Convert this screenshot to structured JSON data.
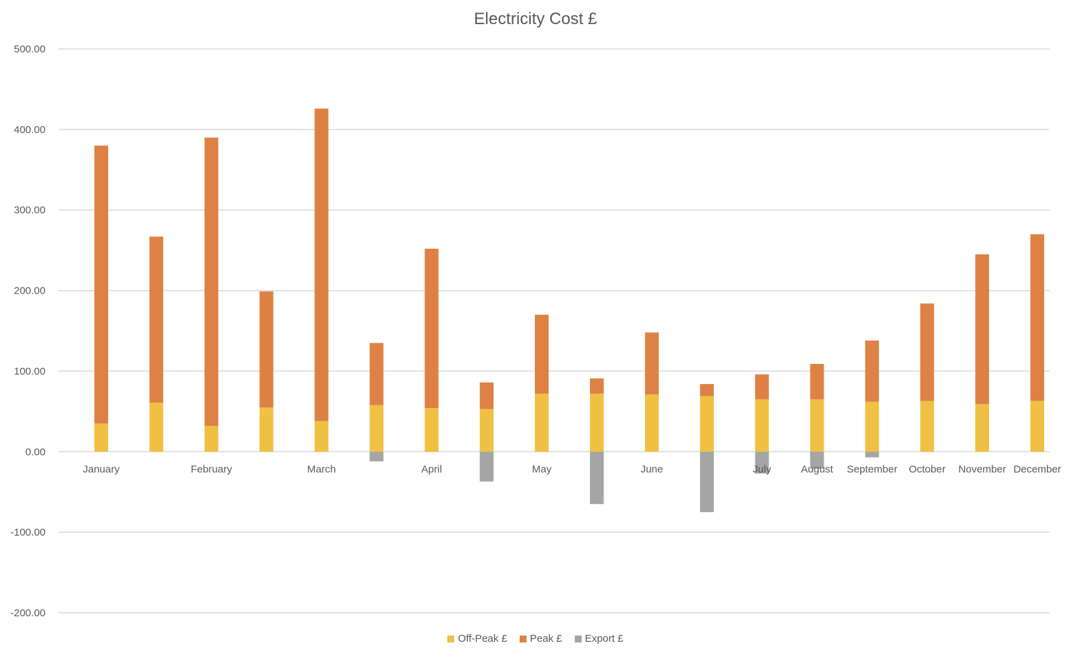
{
  "chart_data": {
    "type": "bar",
    "stacked": true,
    "title": "Electricity Cost £",
    "xlabel": "",
    "ylabel": "",
    "ylim": [
      -200,
      500
    ],
    "yticks": [
      "500.00",
      "400.00",
      "300.00",
      "200.00",
      "100.00",
      "0.00",
      "-100.00",
      "-200.00"
    ],
    "ytick_values": [
      500,
      400,
      300,
      200,
      100,
      0,
      -100,
      -200
    ],
    "grid": true,
    "legend_position": "bottom",
    "categories": [
      "January",
      "February",
      "March",
      "April",
      "May",
      "June",
      "July",
      "August",
      "September",
      "October",
      "November",
      "December"
    ],
    "bars": [
      {
        "category": "January",
        "off_peak": 35,
        "peak": 345,
        "export": 0
      },
      {
        "category": "January",
        "off_peak": 61,
        "peak": 206,
        "export": 0
      },
      {
        "category": "February",
        "off_peak": 32,
        "peak": 358,
        "export": 0
      },
      {
        "category": "February",
        "off_peak": 55,
        "peak": 144,
        "export": 0
      },
      {
        "category": "March",
        "off_peak": 38,
        "peak": 388,
        "export": 0
      },
      {
        "category": "March",
        "off_peak": 58,
        "peak": 77,
        "export": -12
      },
      {
        "category": "April",
        "off_peak": 54,
        "peak": 198,
        "export": 0
      },
      {
        "category": "April",
        "off_peak": 53,
        "peak": 33,
        "export": -37
      },
      {
        "category": "May",
        "off_peak": 72,
        "peak": 98,
        "export": 0
      },
      {
        "category": "May",
        "off_peak": 72,
        "peak": 19,
        "export": -65
      },
      {
        "category": "June",
        "off_peak": 71,
        "peak": 77,
        "export": 0
      },
      {
        "category": "June",
        "off_peak": 69,
        "peak": 15,
        "export": -75
      },
      {
        "category": "July",
        "off_peak": 65,
        "peak": 31,
        "export": -27
      },
      {
        "category": "August",
        "off_peak": 65,
        "peak": 44,
        "export": -21
      },
      {
        "category": "September",
        "off_peak": 62,
        "peak": 76,
        "export": -7
      },
      {
        "category": "October",
        "off_peak": 63,
        "peak": 121,
        "export": 0
      },
      {
        "category": "November",
        "off_peak": 59,
        "peak": 186,
        "export": 0
      },
      {
        "category": "December",
        "off_peak": 63,
        "peak": 207,
        "export": 0
      }
    ],
    "series": [
      {
        "name": "Off-Peak £",
        "key": "off_peak",
        "color": "#F0C043"
      },
      {
        "name": "Peak £",
        "key": "peak",
        "color": "#DD8244"
      },
      {
        "name": "Export £",
        "key": "export",
        "color": "#A5A5A5"
      }
    ]
  }
}
